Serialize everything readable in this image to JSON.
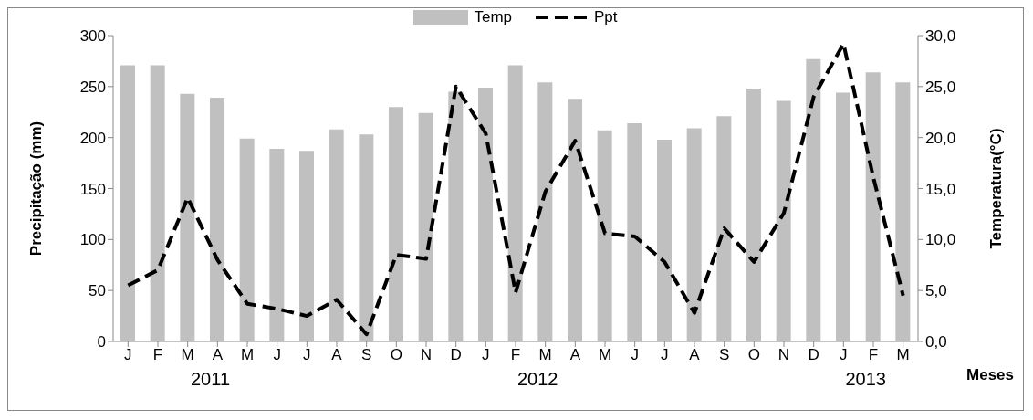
{
  "chart_data": {
    "type": "bar",
    "xlabel": "Meses",
    "ylabel": "Precipitação (mm)",
    "y2label": "Temperatura(°C)",
    "categories": [
      "J",
      "F",
      "M",
      "A",
      "M",
      "J",
      "J",
      "A",
      "S",
      "O",
      "N",
      "D",
      "J",
      "F",
      "M",
      "A",
      "M",
      "J",
      "J",
      "A",
      "S",
      "O",
      "N",
      "D",
      "J",
      "F",
      "M"
    ],
    "series": [
      {
        "name": "Temp",
        "axis": "y2",
        "color": "#c0c0c0",
        "values": [
          27.1,
          27.1,
          24.3,
          23.9,
          19.9,
          18.9,
          18.7,
          20.8,
          20.3,
          23.0,
          22.4,
          24.5,
          24.9,
          27.1,
          25.4,
          23.8,
          20.7,
          21.4,
          19.8,
          20.9,
          22.1,
          24.8,
          23.6,
          27.7,
          24.4,
          26.4,
          25.4
        ]
      },
      {
        "name": "Ppt",
        "type": "line",
        "axis": "y",
        "color": "#000000",
        "line_style": "dashed",
        "values": [
          55,
          70,
          141,
          80,
          37,
          32,
          25,
          41,
          7,
          85,
          81,
          250,
          204,
          48,
          147,
          197,
          106,
          103,
          78,
          28,
          111,
          78,
          126,
          240,
          292,
          161,
          45
        ]
      }
    ],
    "ylim": [
      0,
      300
    ],
    "yticks": [
      0,
      50,
      100,
      150,
      200,
      250,
      300
    ],
    "y2lim": [
      0,
      30
    ],
    "y2ticks": [
      {
        "value": 0,
        "label": "0,0"
      },
      {
        "value": 5,
        "label": "5,0"
      },
      {
        "value": 10,
        "label": "10,0"
      },
      {
        "value": 15,
        "label": "15,0"
      },
      {
        "value": 20,
        "label": "20,0"
      },
      {
        "value": 25,
        "label": "25,0"
      },
      {
        "value": 30,
        "label": "30,0"
      }
    ],
    "legend": "top",
    "marker": "none",
    "annotations": [
      "2011",
      "2012",
      "2013"
    ]
  }
}
